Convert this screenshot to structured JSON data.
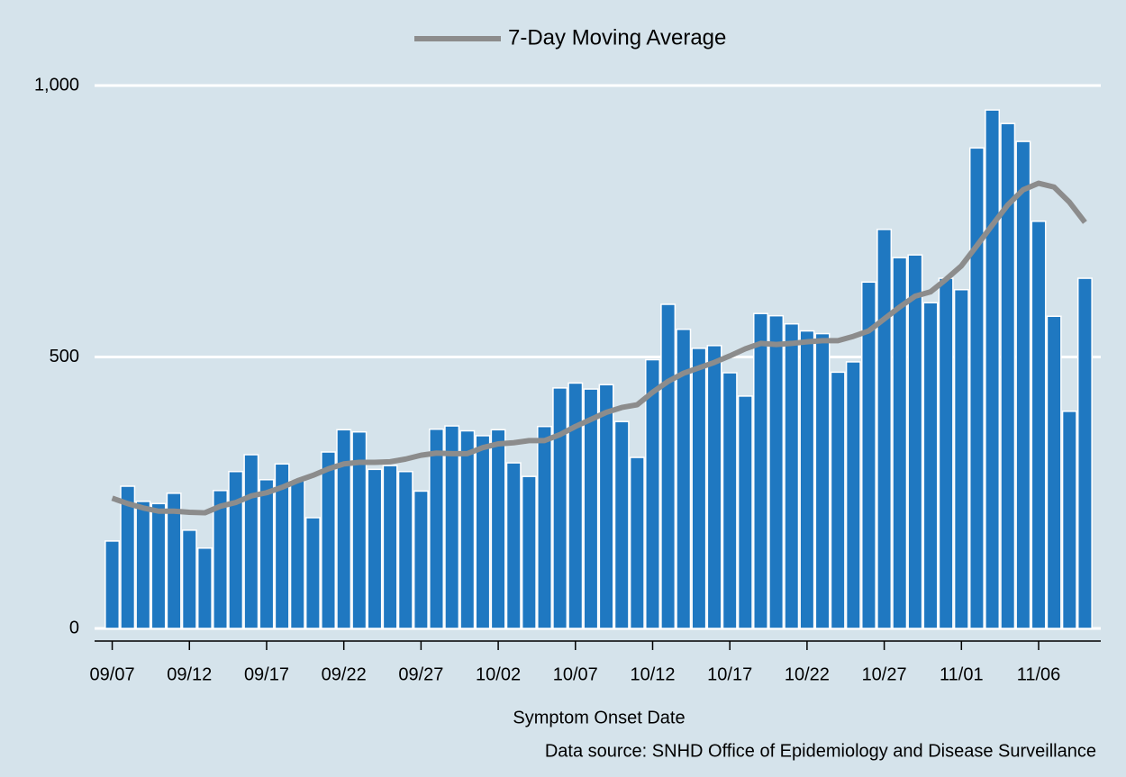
{
  "chart_data": {
    "type": "bar_line",
    "x_label": "Symptom Onset Date",
    "source": "Data source: SNHD Office of Epidemiology and Disease Surveillance",
    "categories": [
      "09/07",
      null,
      null,
      null,
      null,
      "09/12",
      null,
      null,
      null,
      null,
      "09/17",
      null,
      null,
      null,
      null,
      "09/22",
      null,
      null,
      null,
      null,
      "09/27",
      null,
      null,
      null,
      null,
      "10/02",
      null,
      null,
      null,
      null,
      "10/07",
      null,
      null,
      null,
      null,
      "10/12",
      null,
      null,
      null,
      null,
      "10/17",
      null,
      null,
      null,
      null,
      "10/22",
      null,
      null,
      null,
      null,
      "10/27",
      null,
      null,
      null,
      null,
      "11/01",
      null,
      null,
      null,
      null,
      "11/06",
      null,
      null,
      null
    ],
    "series": [
      {
        "type": "bar",
        "color": "#1f78c1",
        "values": [
          161,
          262,
          234,
          230,
          249,
          181,
          148,
          254,
          289,
          320,
          274,
          303,
          272,
          204,
          325,
          366,
          362,
          293,
          300,
          289,
          253,
          367,
          373,
          364,
          355,
          366,
          305,
          280,
          372,
          443,
          452,
          441,
          449,
          381,
          315,
          495,
          597,
          551,
          516,
          521,
          471,
          428,
          580,
          576,
          561,
          548,
          543,
          472,
          491,
          638,
          735,
          683,
          688,
          600,
          645,
          624,
          885,
          955,
          930,
          897,
          750,
          575,
          400,
          645
        ]
      },
      {
        "type": "line",
        "name": "7-Day Moving Average",
        "color": "#8c8c8c",
        "values": [
          240,
          230,
          222,
          216,
          216,
          214,
          213,
          225,
          232,
          244,
          250,
          260,
          272,
          282,
          294,
          303,
          306,
          306,
          307,
          312,
          319,
          323,
          322,
          322,
          333,
          340,
          342,
          346,
          346,
          357,
          372,
          385,
          398,
          407,
          412,
          435,
          455,
          470,
          480,
          490,
          502,
          515,
          525,
          523,
          525,
          528,
          530,
          530,
          538,
          548,
          570,
          592,
          612,
          620,
          643,
          668,
          705,
          743,
          780,
          808,
          820,
          813,
          785,
          748
        ]
      }
    ],
    "ylim": [
      0,
      1000
    ],
    "yticks": [
      0,
      500,
      {
        "value": 1000,
        "label": "1,000"
      }
    ],
    "grid": true,
    "legend": "top"
  }
}
